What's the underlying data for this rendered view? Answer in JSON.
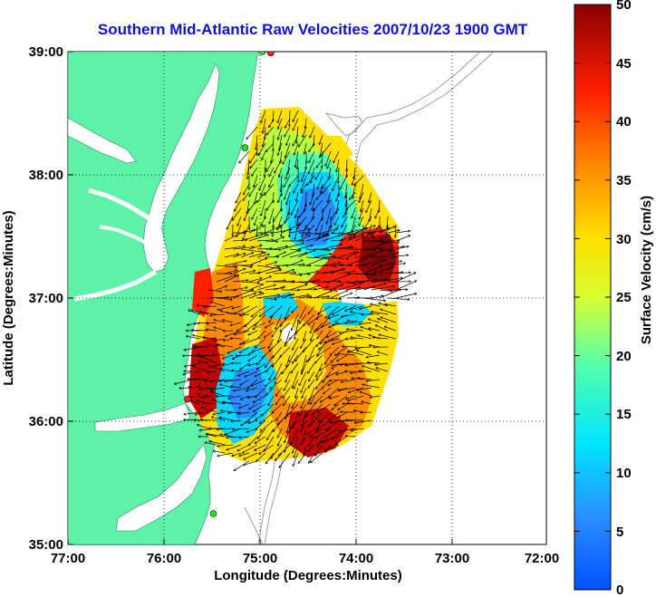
{
  "map": {
    "title": "Southern Mid-Atlantic Raw Velocities 2007/10/23 1900 GMT",
    "xlabel": "Longitude (Degrees:Minutes)",
    "ylabel": "Latitude (Degrees:Minutes)",
    "x_ticks": [
      "77:00",
      "76:00",
      "75:00",
      "74:00",
      "73:00",
      "72:00"
    ],
    "y_ticks": [
      "39:00",
      "38:00",
      "37:00",
      "36:00",
      "35:00"
    ],
    "lon_range": [
      -77,
      -72
    ],
    "lat_range": [
      35,
      39
    ],
    "grid": "dotted",
    "land_color": "#5ef2a8",
    "water_color": "#ffffff",
    "bathymetry_color": "#a0a0a0",
    "vector_color": "#000000",
    "station_markers": [
      {
        "lon": -74.88,
        "lat": 38.99,
        "color": "#ff2020"
      },
      {
        "lon": -74.97,
        "lat": 39.0,
        "color": "#20e020"
      },
      {
        "lon": -75.15,
        "lat": 38.22,
        "color": "#20e020"
      },
      {
        "lon": -75.75,
        "lat": 36.18,
        "color": "#ff2020"
      },
      {
        "lon": -75.48,
        "lat": 35.25,
        "color": "#20e020"
      }
    ]
  },
  "colorbar": {
    "label": "Surface Velocity (cm/s)",
    "ticks": [
      "50",
      "45",
      "40",
      "35",
      "30",
      "25",
      "20",
      "15",
      "10",
      "5",
      "0"
    ],
    "range": [
      0,
      50
    ],
    "colormap": "jet"
  }
}
